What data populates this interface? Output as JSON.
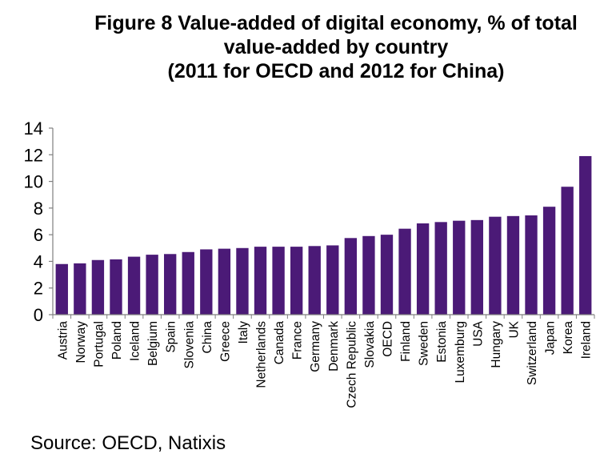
{
  "chart_data": {
    "type": "bar",
    "title_lines": [
      "Figure 8 Value-added of digital economy, % of total",
      "value-added by country",
      "(2011 for OECD and 2012 for China)"
    ],
    "categories": [
      "Austria",
      "Norway",
      "Portugal",
      "Poland",
      "Iceland",
      "Belgium",
      "Spain",
      "Slovenia",
      "China",
      "Greece",
      "Italy",
      "Netherlands",
      "Canada",
      "France",
      "Germany",
      "Denmark",
      "Czech Republic",
      "Slovakia",
      "OECD",
      "Finland",
      "Sweden",
      "Estonia",
      "Luxemburg",
      "USA",
      "Hungary",
      "UK",
      "Switzerland",
      "Japan",
      "Korea",
      "Ireland"
    ],
    "values": [
      3.8,
      3.85,
      4.1,
      4.15,
      4.35,
      4.5,
      4.55,
      4.7,
      4.9,
      4.95,
      5.0,
      5.1,
      5.1,
      5.1,
      5.15,
      5.2,
      5.75,
      5.9,
      6.0,
      6.45,
      6.85,
      6.95,
      7.05,
      7.1,
      7.35,
      7.4,
      7.45,
      8.1,
      9.6,
      11.9
    ],
    "ylim": [
      0,
      14
    ],
    "yticks": [
      0,
      2,
      4,
      6,
      8,
      10,
      12,
      14
    ],
    "xlabel": "",
    "ylabel": "",
    "bar_color": "#4b1a77",
    "source": "Source: OECD, Natixis"
  }
}
